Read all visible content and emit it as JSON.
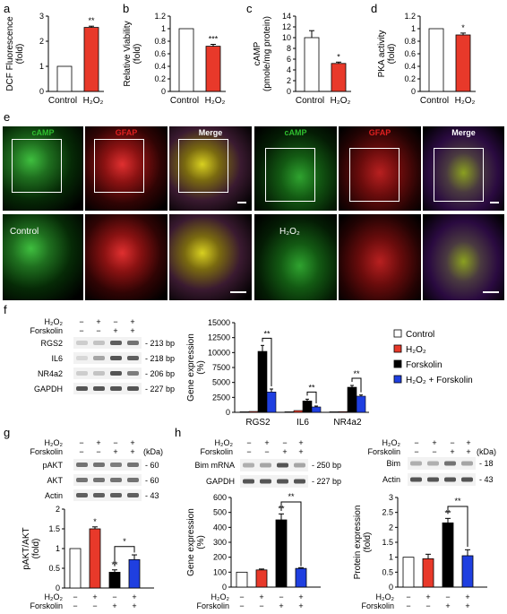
{
  "colors": {
    "control": "#ffffff",
    "h2o2": "#e8392a",
    "forskolin": "#000000",
    "combo": "#1f3fe0",
    "green": "#2fbf2f",
    "red": "#e02020"
  },
  "panel_letters": [
    "a",
    "b",
    "c",
    "d",
    "e",
    "f",
    "g",
    "h"
  ],
  "panel_a": {
    "ylabel": "DCF Fluorescence\n(fold)",
    "categories": [
      "Control",
      "H2O2"
    ],
    "values": [
      1,
      2.55
    ],
    "ylim": [
      0,
      3
    ],
    "ticks": [
      "0",
      "1",
      "2",
      "3"
    ],
    "sig": [
      "",
      "**"
    ]
  },
  "panel_b": {
    "ylabel": "Relative Viability\n(fold)",
    "categories": [
      "Control",
      "H2O2"
    ],
    "values": [
      1,
      0.72
    ],
    "ylim": [
      0,
      1.2
    ],
    "ticks": [
      "0",
      "0.2",
      "0.4",
      "0.6",
      "0.8",
      "1",
      "1.2"
    ],
    "sig": [
      "",
      "***"
    ]
  },
  "panel_c": {
    "ylabel": "cAMP\n(pmole/mg protein)",
    "categories": [
      "Control",
      "H2O2"
    ],
    "values": [
      10,
      5.2
    ],
    "ylim": [
      0,
      14
    ],
    "ticks": [
      "0",
      "2",
      "4",
      "6",
      "8",
      "10",
      "12",
      "14"
    ],
    "sig": [
      "",
      "*"
    ]
  },
  "panel_d": {
    "ylabel": "PKA activity\n(fold)",
    "categories": [
      "Control",
      "H2O2"
    ],
    "values": [
      1,
      0.9
    ],
    "ylim": [
      0,
      1.2
    ],
    "ticks": [
      "0",
      "0.2",
      "0.4",
      "0.6",
      "0.8",
      "1",
      "1.2"
    ],
    "sig": [
      "",
      "*"
    ]
  },
  "panel_e": {
    "headers": [
      "cAMP",
      "GFAP",
      "Merge",
      "cAMP",
      "GFAP",
      "Merge"
    ],
    "insets": [
      "Control",
      "H2O2"
    ]
  },
  "panel_f": {
    "treat_rows": [
      {
        "label": "H2O2",
        "marks": [
          "−",
          "+",
          "−",
          "+"
        ]
      },
      {
        "label": "Forskolin",
        "marks": [
          "−",
          "−",
          "+",
          "+"
        ]
      }
    ],
    "blots": [
      {
        "name": "RGS2",
        "size": "- 213 bp"
      },
      {
        "name": "IL6",
        "size": "- 218 bp"
      },
      {
        "name": "NR4a2",
        "size": "- 206 bp"
      },
      {
        "name": "GAPDH",
        "size": "- 227 bp"
      }
    ],
    "chart": {
      "ylabel": "Gene expression\n(%)",
      "categories": [
        "RGS2",
        "IL6",
        "NR4a2"
      ],
      "ticks": [
        "0",
        "2500",
        "5000",
        "7500",
        "10000",
        "12500",
        "15000"
      ],
      "ylim": [
        0,
        15000
      ],
      "series": [
        {
          "name": "Control",
          "values": [
            100,
            100,
            100
          ]
        },
        {
          "name": "H2O2",
          "values": [
            150,
            300,
            120
          ]
        },
        {
          "name": "Forskolin",
          "values": [
            10200,
            1900,
            4200
          ]
        },
        {
          "name": "H2O2 + Forskolin",
          "values": [
            3400,
            900,
            2700
          ]
        }
      ],
      "sig": [
        "**",
        "**",
        "**"
      ]
    }
  },
  "panel_g": {
    "treat_rows": [
      {
        "label": "H2O2",
        "marks": [
          "−",
          "+",
          "−",
          "+"
        ]
      },
      {
        "label": "Forskolin",
        "marks": [
          "−",
          "−",
          "+",
          "+"
        ]
      }
    ],
    "kda": "(kDa)",
    "blots": [
      {
        "name": "pAKT",
        "size": "- 60"
      },
      {
        "name": "AKT",
        "size": "- 60"
      },
      {
        "name": "Actin",
        "size": "- 43"
      }
    ],
    "chart": {
      "ylabel": "pAKT/AKT\n(fold)",
      "ticks": [
        "0",
        "0.5",
        "1",
        "1.5",
        "2"
      ],
      "ylim": [
        0,
        2
      ],
      "values": [
        1,
        1.5,
        0.4,
        0.72
      ],
      "sig": [
        "",
        "*",
        "**",
        "*"
      ]
    },
    "bottom": [
      {
        "label": "H2O2",
        "marks": [
          "−",
          "+",
          "−",
          "+"
        ]
      },
      {
        "label": "Forskolin",
        "marks": [
          "−",
          "−",
          "+",
          "+"
        ]
      }
    ]
  },
  "panel_h": {
    "treat_rows": [
      {
        "label": "H2O2",
        "marks": [
          "−",
          "+",
          "−",
          "+"
        ]
      },
      {
        "label": "Forskolin",
        "marks": [
          "−",
          "−",
          "+",
          "+"
        ]
      }
    ],
    "blots_mrna": [
      {
        "name": "Bim mRNA",
        "size": "- 250 bp"
      },
      {
        "name": "GAPDH",
        "size": "- 227 bp"
      }
    ],
    "kda": "(kDa)",
    "blots_prot": [
      {
        "name": "Bim",
        "size": "- 18"
      },
      {
        "name": "Actin",
        "size": "- 43"
      }
    ],
    "chart1": {
      "ylabel": "Gene expression\n(%)",
      "ticks": [
        "0",
        "100",
        "200",
        "300",
        "400",
        "500",
        "600"
      ],
      "ylim": [
        0,
        600
      ],
      "values": [
        100,
        115,
        450,
        125
      ],
      "sig": [
        "",
        "",
        "**",
        "**"
      ]
    },
    "chart2": {
      "ylabel": "Protein expression\n(fold)",
      "ticks": [
        "0",
        "0.5",
        "1",
        "1.5",
        "2",
        "2.5",
        "3"
      ],
      "ylim": [
        0,
        3
      ],
      "values": [
        1,
        0.95,
        2.15,
        1.05
      ],
      "sig": [
        "",
        "",
        "**",
        "**"
      ]
    },
    "bottom": [
      {
        "label": "H2O2",
        "marks": [
          "−",
          "+",
          "−",
          "+"
        ]
      },
      {
        "label": "Forskolin",
        "marks": [
          "−",
          "−",
          "+",
          "+"
        ]
      }
    ]
  }
}
